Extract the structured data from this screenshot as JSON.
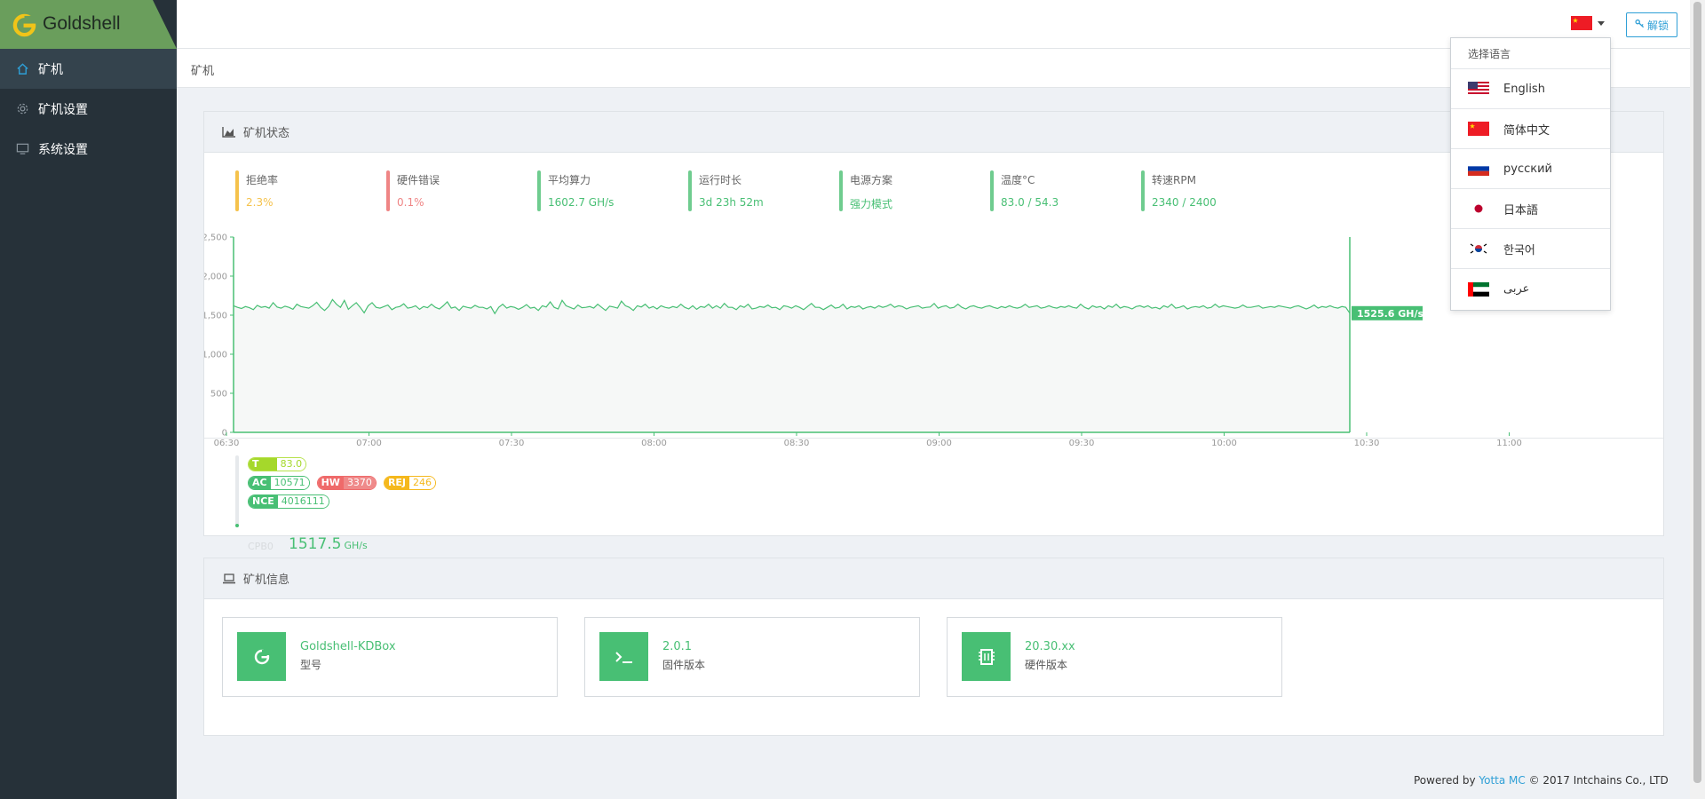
{
  "brand": {
    "name": "Goldshell"
  },
  "sidebar": {
    "items": [
      {
        "label": "矿机",
        "icon": "home-icon",
        "active": true
      },
      {
        "label": "矿机设置",
        "icon": "gear-icon",
        "active": false
      },
      {
        "label": "系统设置",
        "icon": "monitor-icon",
        "active": false
      }
    ]
  },
  "topbar": {
    "unlock_label": "解锁",
    "current_language_flag": "china-flag-icon"
  },
  "breadcrumb": "矿机",
  "status_panel": {
    "title": "矿机状态",
    "stats": [
      {
        "label": "拒绝率",
        "value": "2.3%",
        "color": "#f5c24c"
      },
      {
        "label": "硬件错误",
        "value": "0.1%",
        "color": "#ef8585"
      },
      {
        "label": "平均算力",
        "value": "1602.7 GH/s",
        "color": "#48bf74"
      },
      {
        "label": "运行时长",
        "value": "3d 23h 52m",
        "color": "#48bf74"
      },
      {
        "label": "电源方案",
        "value": "强力模式",
        "color": "#48bf74"
      },
      {
        "label": "温度°C",
        "value": "83.0 / 54.3",
        "color": "#48bf74"
      },
      {
        "label": "转速RPM",
        "value": "2340 / 2400",
        "color": "#48bf74"
      }
    ],
    "latest_label": "1525.6 GH/s",
    "board": {
      "temp_key": "T (°C)",
      "temp_value": "83.0 / 54.3",
      "ac_key": "AC",
      "ac_value": "10571",
      "hw_key": "HW",
      "hw_value": "3370",
      "rej_key": "REJ",
      "rej_value": "246",
      "nce_key": "NCE",
      "nce_value": "4016111",
      "name": "CPB0",
      "hashrate": "1517.5",
      "unit": "GH/s"
    }
  },
  "chart_data": {
    "type": "area",
    "x_ticks": [
      "06:30",
      "07:00",
      "07:30",
      "08:00",
      "08:30",
      "09:00",
      "09:30",
      "10:00",
      "10:30",
      "11:00"
    ],
    "y_ticks": [
      "0",
      "500",
      "1,000",
      "1,500",
      "2,000",
      "2,500"
    ],
    "ylim": [
      0,
      2500
    ],
    "xlim": [
      "06:30",
      "11:20"
    ],
    "series": [
      {
        "color": "#48bf74",
        "approx_level": 1600,
        "values": [
          1620,
          1600,
          1585,
          1610,
          1595,
          1570,
          1625,
          1600,
          1610,
          1590,
          1660,
          1605,
          1590,
          1615,
          1600,
          1575,
          1640,
          1610,
          1600,
          1590,
          1620,
          1665,
          1600,
          1560,
          1610,
          1700,
          1640,
          1600,
          1690,
          1575,
          1620,
          1660,
          1600,
          1530,
          1620,
          1660,
          1600,
          1590,
          1610,
          1630,
          1570,
          1600,
          1610,
          1645,
          1590,
          1600,
          1620,
          1575,
          1610,
          1595,
          1640,
          1600,
          1580,
          1620,
          1670,
          1590,
          1605,
          1560,
          1615,
          1600,
          1590,
          1625,
          1600,
          1600,
          1580,
          1610,
          1520,
          1600,
          1640,
          1590,
          1610,
          1600,
          1575,
          1600,
          1635,
          1590,
          1600,
          1560,
          1620,
          1605,
          1670,
          1600,
          1580,
          1690,
          1620,
          1600,
          1580,
          1630,
          1595,
          1600,
          1610,
          1590,
          1640,
          1600,
          1560,
          1615,
          1605,
          1590,
          1680,
          1620,
          1600,
          1560,
          1620,
          1605,
          1640,
          1590,
          1610,
          1580,
          1620,
          1600,
          1590,
          1610,
          1595,
          1640,
          1600,
          1580,
          1620,
          1575,
          1610,
          1600,
          1640,
          1590,
          1620,
          1590,
          1650,
          1600,
          1600,
          1570,
          1620,
          1600,
          1640,
          1580,
          1590,
          1610,
          1600,
          1630,
          1595,
          1600,
          1570,
          1620,
          1610,
          1590,
          1620,
          1600,
          1570,
          1610,
          1650,
          1600,
          1600,
          1570,
          1600,
          1630,
          1590,
          1600,
          1640,
          1580,
          1610,
          1600,
          1620,
          1580,
          1600,
          1610,
          1590,
          1620,
          1600,
          1615,
          1640,
          1600,
          1620,
          1610,
          1580,
          1600,
          1610,
          1620,
          1590,
          1600,
          1605,
          1650,
          1590,
          1610,
          1620,
          1590,
          1600,
          1640,
          1600,
          1580,
          1610,
          1620,
          1600,
          1590,
          1610,
          1620,
          1600,
          1585,
          1610,
          1595,
          1620,
          1600,
          1590,
          1605,
          1640,
          1600,
          1610,
          1620,
          1590,
          1600,
          1620,
          1600,
          1590,
          1610,
          1600,
          1620,
          1600,
          1590,
          1640,
          1600,
          1580,
          1620,
          1600,
          1610,
          1580,
          1620,
          1600,
          1640,
          1590,
          1610,
          1600,
          1580,
          1610,
          1620,
          1600,
          1620,
          1590,
          1600,
          1580,
          1620,
          1600,
          1640,
          1590,
          1600,
          1620,
          1580,
          1600,
          1610,
          1600,
          1620,
          1590,
          1600,
          1640,
          1600,
          1620,
          1610,
          1600,
          1590,
          1600,
          1630,
          1600,
          1600,
          1610,
          1620,
          1590,
          1600,
          1610,
          1600,
          1620,
          1610,
          1600,
          1590,
          1610,
          1620,
          1600,
          1580,
          1600,
          1630,
          1590,
          1610,
          1600,
          1620,
          1600,
          1590,
          1610,
          1600,
          1525
        ]
      }
    ]
  },
  "info_panel": {
    "title": "矿机信息",
    "cards": [
      {
        "title": "Goldshell-KDBox",
        "subtitle": "型号",
        "icon": "goldshell-g-icon"
      },
      {
        "title": "2.0.1",
        "subtitle": "固件版本",
        "icon": "terminal-icon"
      },
      {
        "title": "20.30.xx",
        "subtitle": "硬件版本",
        "icon": "chip-icon"
      }
    ]
  },
  "language_menu": {
    "header": "选择语言",
    "items": [
      {
        "label": "English",
        "flag": "us-flag-icon"
      },
      {
        "label": "简体中文",
        "flag": "china-flag-icon"
      },
      {
        "label": "русский",
        "flag": "russia-flag-icon"
      },
      {
        "label": "日本語",
        "flag": "japan-flag-icon"
      },
      {
        "label": "한국어",
        "flag": "korea-flag-icon"
      },
      {
        "label": "عربى",
        "flag": "uae-flag-icon"
      }
    ]
  },
  "footer": {
    "prefix": "Powered by ",
    "link": "Yotta MC",
    "suffix": " © 2017 Intchains Co., LTD"
  }
}
